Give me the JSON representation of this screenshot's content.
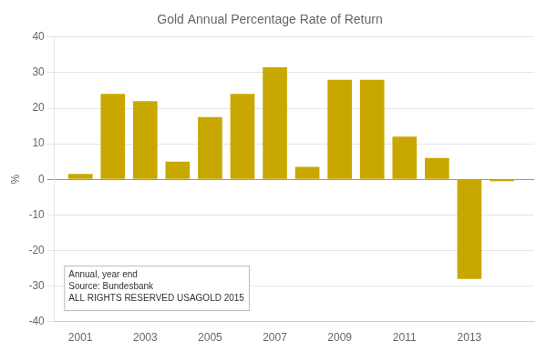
{
  "chart_data": {
    "type": "bar",
    "title": "Gold Annual Percentage Rate of Return",
    "x": [
      2001,
      2002,
      2003,
      2004,
      2005,
      2006,
      2007,
      2008,
      2009,
      2010,
      2011,
      2012,
      2013,
      2014
    ],
    "values": [
      1.5,
      24.0,
      22.0,
      5.0,
      17.5,
      24.0,
      31.5,
      3.5,
      28.0,
      28.0,
      12.0,
      6.0,
      -28.0,
      -0.5
    ],
    "color": "#C8A800",
    "ylabel": "%",
    "xlim": [
      2000.2,
      2015.0
    ],
    "xticks": [
      2001,
      2003,
      2005,
      2007,
      2009,
      2011,
      2013
    ],
    "ylim": [
      -40,
      40
    ],
    "yticks": [
      -40,
      -30,
      -20,
      -10,
      0,
      10,
      20,
      30,
      40
    ],
    "annotation": "Annual, year end\nSource: Bundesbank\nALL RIGHTS RESERVED USAGOLD 2015",
    "grid": true
  }
}
